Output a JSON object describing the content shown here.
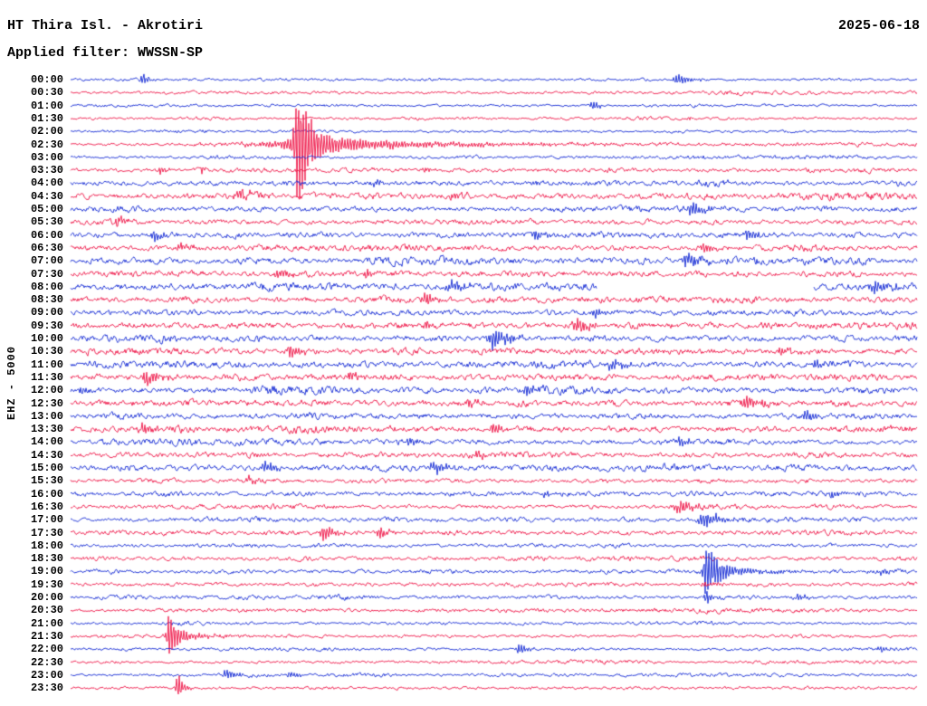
{
  "header": {
    "station_title": "HT Thira Isl. - Akrotiri",
    "date": "2025-06-18",
    "filter_label": "Applied filter: WWSSN-SP"
  },
  "axis": {
    "vertical_label": "EHZ - 5000"
  },
  "chart_data": {
    "type": "line",
    "subtype": "helicorder-seismogram",
    "station": "HT Thira Isl. - Akrotiri",
    "channel": "EHZ",
    "scale": 5000,
    "date": "2025-06-18",
    "filter": "WWSSN-SP",
    "minutes_per_row": 30,
    "rows_per_day": 48,
    "grid": false,
    "legend": false,
    "trace_colors": {
      "blue": "#1228d4",
      "red": "#ee1446"
    },
    "event_fields": "x=fraction along row, a=peak amplitude px, w=decay width fraction of row",
    "rows": [
      {
        "t": "00:00",
        "c": "blue",
        "amp": 1.6,
        "ev": [
          {
            "x": 0.085,
            "a": 9,
            "w": 0.006
          },
          {
            "x": 0.718,
            "a": 7,
            "w": 0.014
          }
        ]
      },
      {
        "t": "00:30",
        "c": "red",
        "amp": 1.8,
        "ev": []
      },
      {
        "t": "01:00",
        "c": "blue",
        "amp": 1.6,
        "ev": [
          {
            "x": 0.617,
            "a": 7,
            "w": 0.007
          }
        ]
      },
      {
        "t": "01:30",
        "c": "red",
        "amp": 1.7,
        "ev": [
          {
            "x": 0.73,
            "a": 3,
            "w": 0.006
          }
        ]
      },
      {
        "t": "02:00",
        "c": "blue",
        "amp": 1.6,
        "ev": []
      },
      {
        "t": "02:30",
        "c": "red",
        "amp": 1.9,
        "ev": [
          {
            "x": 0.269,
            "a": 78,
            "w": 0.01
          },
          {
            "x": 0.28,
            "a": 12,
            "w": 0.05
          },
          {
            "x": 0.3,
            "a": 4,
            "w": 0.25
          }
        ]
      },
      {
        "t": "03:00",
        "c": "blue",
        "amp": 1.9,
        "ev": [
          {
            "x": 0.74,
            "a": 3,
            "w": 0.01
          }
        ]
      },
      {
        "t": "03:30",
        "c": "red",
        "amp": 2.8,
        "ev": [
          {
            "x": 0.105,
            "a": 6,
            "w": 0.006
          },
          {
            "x": 0.155,
            "a": 5,
            "w": 0.005
          },
          {
            "x": 0.42,
            "a": 4,
            "w": 0.01
          }
        ]
      },
      {
        "t": "04:00",
        "c": "blue",
        "amp": 3.2,
        "ev": [
          {
            "x": 0.36,
            "a": 5,
            "w": 0.01
          },
          {
            "x": 0.55,
            "a": 4,
            "w": 0.01
          }
        ]
      },
      {
        "t": "04:30",
        "c": "red",
        "amp": 3.6,
        "ev": [
          {
            "x": 0.2,
            "a": 7,
            "w": 0.012
          },
          {
            "x": 0.45,
            "a": 5,
            "w": 0.01
          }
        ]
      },
      {
        "t": "05:00",
        "c": "blue",
        "amp": 3.2,
        "ev": [
          {
            "x": 0.735,
            "a": 7,
            "w": 0.02
          }
        ]
      },
      {
        "t": "05:30",
        "c": "red",
        "amp": 3.2,
        "ev": [
          {
            "x": 0.055,
            "a": 6,
            "w": 0.008
          }
        ]
      },
      {
        "t": "06:00",
        "c": "blue",
        "amp": 3.6,
        "ev": [
          {
            "x": 0.1,
            "a": 7,
            "w": 0.01
          },
          {
            "x": 0.55,
            "a": 5,
            "w": 0.012
          },
          {
            "x": 0.8,
            "a": 7,
            "w": 0.012
          }
        ]
      },
      {
        "t": "06:30",
        "c": "red",
        "amp": 3.2,
        "ev": [
          {
            "x": 0.13,
            "a": 6,
            "w": 0.01
          },
          {
            "x": 0.75,
            "a": 6,
            "w": 0.012
          }
        ]
      },
      {
        "t": "07:00",
        "c": "blue",
        "amp": 3.6,
        "ev": [
          {
            "x": 0.73,
            "a": 9,
            "w": 0.02
          }
        ]
      },
      {
        "t": "07:30",
        "c": "red",
        "amp": 3.6,
        "ev": [
          {
            "x": 0.245,
            "a": 8,
            "w": 0.01
          },
          {
            "x": 0.35,
            "a": 7,
            "w": 0.01
          }
        ]
      },
      {
        "t": "08:00",
        "c": "blue",
        "amp": 4.2,
        "ev": [
          {
            "x": 0.45,
            "a": 6,
            "w": 0.02
          },
          {
            "x": 0.95,
            "a": 8,
            "w": 0.02
          }
        ],
        "gap": [
          0.622,
          0.878
        ]
      },
      {
        "t": "08:30",
        "c": "red",
        "amp": 3.8,
        "ev": [
          {
            "x": 0.42,
            "a": 7,
            "w": 0.012
          }
        ]
      },
      {
        "t": "09:00",
        "c": "blue",
        "amp": 3.2,
        "ev": [
          {
            "x": 0.62,
            "a": 7,
            "w": 0.012
          }
        ]
      },
      {
        "t": "09:30",
        "c": "red",
        "amp": 3.8,
        "ev": [
          {
            "x": 0.42,
            "a": 6,
            "w": 0.01
          },
          {
            "x": 0.6,
            "a": 9,
            "w": 0.015
          }
        ]
      },
      {
        "t": "10:00",
        "c": "blue",
        "amp": 3.8,
        "ev": [
          {
            "x": 0.5,
            "a": 13,
            "w": 0.018
          }
        ]
      },
      {
        "t": "10:30",
        "c": "red",
        "amp": 3.8,
        "ev": [
          {
            "x": 0.26,
            "a": 7,
            "w": 0.012
          },
          {
            "x": 0.84,
            "a": 7,
            "w": 0.012
          }
        ]
      },
      {
        "t": "11:00",
        "c": "blue",
        "amp": 3.8,
        "ev": [
          {
            "x": 0.64,
            "a": 8,
            "w": 0.014
          },
          {
            "x": 0.88,
            "a": 7,
            "w": 0.012
          }
        ]
      },
      {
        "t": "11:30",
        "c": "red",
        "amp": 3.8,
        "ev": [
          {
            "x": 0.09,
            "a": 11,
            "w": 0.01
          },
          {
            "x": 0.33,
            "a": 6,
            "w": 0.01
          }
        ]
      },
      {
        "t": "12:00",
        "c": "blue",
        "amp": 3.8,
        "ev": [
          {
            "x": 0.012,
            "a": 6,
            "w": 0.008
          },
          {
            "x": 0.54,
            "a": 7,
            "w": 0.012
          }
        ]
      },
      {
        "t": "12:30",
        "c": "red",
        "amp": 3.8,
        "ev": [
          {
            "x": 0.47,
            "a": 6,
            "w": 0.012
          },
          {
            "x": 0.8,
            "a": 9,
            "w": 0.016
          }
        ]
      },
      {
        "t": "13:00",
        "c": "blue",
        "amp": 3.4,
        "ev": [
          {
            "x": 0.87,
            "a": 8,
            "w": 0.012
          }
        ]
      },
      {
        "t": "13:30",
        "c": "red",
        "amp": 3.4,
        "ev": [
          {
            "x": 0.085,
            "a": 7,
            "w": 0.01
          },
          {
            "x": 0.5,
            "a": 7,
            "w": 0.012
          }
        ]
      },
      {
        "t": "14:00",
        "c": "blue",
        "amp": 3.2,
        "ev": [
          {
            "x": 0.4,
            "a": 5,
            "w": 0.012
          },
          {
            "x": 0.72,
            "a": 6,
            "w": 0.012
          }
        ]
      },
      {
        "t": "14:30",
        "c": "red",
        "amp": 3.2,
        "ev": [
          {
            "x": 0.48,
            "a": 5,
            "w": 0.012
          }
        ]
      },
      {
        "t": "15:00",
        "c": "blue",
        "amp": 3.8,
        "ev": [
          {
            "x": 0.23,
            "a": 7,
            "w": 0.014
          },
          {
            "x": 0.43,
            "a": 7,
            "w": 0.016
          }
        ]
      },
      {
        "t": "15:30",
        "c": "red",
        "amp": 2.6,
        "ev": [
          {
            "x": 0.21,
            "a": 5,
            "w": 0.01
          }
        ]
      },
      {
        "t": "16:00",
        "c": "blue",
        "amp": 3.0,
        "ev": [
          {
            "x": 0.56,
            "a": 5,
            "w": 0.012
          },
          {
            "x": 0.9,
            "a": 5,
            "w": 0.012
          }
        ]
      },
      {
        "t": "16:30",
        "c": "red",
        "amp": 2.6,
        "ev": [
          {
            "x": 0.72,
            "a": 7,
            "w": 0.018
          }
        ]
      },
      {
        "t": "17:00",
        "c": "blue",
        "amp": 2.6,
        "ev": [
          {
            "x": 0.75,
            "a": 9,
            "w": 0.02
          }
        ]
      },
      {
        "t": "17:30",
        "c": "red",
        "amp": 3.0,
        "ev": [
          {
            "x": 0.3,
            "a": 9,
            "w": 0.012
          },
          {
            "x": 0.365,
            "a": 7,
            "w": 0.01
          }
        ]
      },
      {
        "t": "18:00",
        "c": "blue",
        "amp": 2.4,
        "ev": []
      },
      {
        "t": "18:30",
        "c": "red",
        "amp": 2.4,
        "ev": []
      },
      {
        "t": "19:00",
        "c": "blue",
        "amp": 2.4,
        "ev": [
          {
            "x": 0.752,
            "a": 34,
            "w": 0.01
          },
          {
            "x": 0.77,
            "a": 6,
            "w": 0.05
          },
          {
            "x": 0.96,
            "a": 5,
            "w": 0.01
          }
        ]
      },
      {
        "t": "19:30",
        "c": "red",
        "amp": 2.4,
        "ev": [
          {
            "x": 0.75,
            "a": 4,
            "w": 0.012
          }
        ]
      },
      {
        "t": "20:00",
        "c": "blue",
        "amp": 2.4,
        "ev": [
          {
            "x": 0.752,
            "a": 7,
            "w": 0.01
          },
          {
            "x": 0.86,
            "a": 5,
            "w": 0.01
          }
        ]
      },
      {
        "t": "20:30",
        "c": "red",
        "amp": 2.0,
        "ev": []
      },
      {
        "t": "21:00",
        "c": "blue",
        "amp": 1.9,
        "ev": []
      },
      {
        "t": "21:30",
        "c": "red",
        "amp": 1.9,
        "ev": [
          {
            "x": 0.117,
            "a": 25,
            "w": 0.008
          },
          {
            "x": 0.13,
            "a": 5,
            "w": 0.04
          }
        ]
      },
      {
        "t": "22:00",
        "c": "blue",
        "amp": 1.8,
        "ev": [
          {
            "x": 0.53,
            "a": 8,
            "w": 0.008
          },
          {
            "x": 0.957,
            "a": 5,
            "w": 0.008
          }
        ]
      },
      {
        "t": "22:30",
        "c": "red",
        "amp": 1.8,
        "ev": []
      },
      {
        "t": "23:00",
        "c": "blue",
        "amp": 1.8,
        "ev": [
          {
            "x": 0.185,
            "a": 8,
            "w": 0.01
          },
          {
            "x": 0.26,
            "a": 4,
            "w": 0.012
          }
        ]
      },
      {
        "t": "23:30",
        "c": "red",
        "amp": 1.8,
        "ev": [
          {
            "x": 0.127,
            "a": 17,
            "w": 0.007
          }
        ]
      }
    ]
  }
}
